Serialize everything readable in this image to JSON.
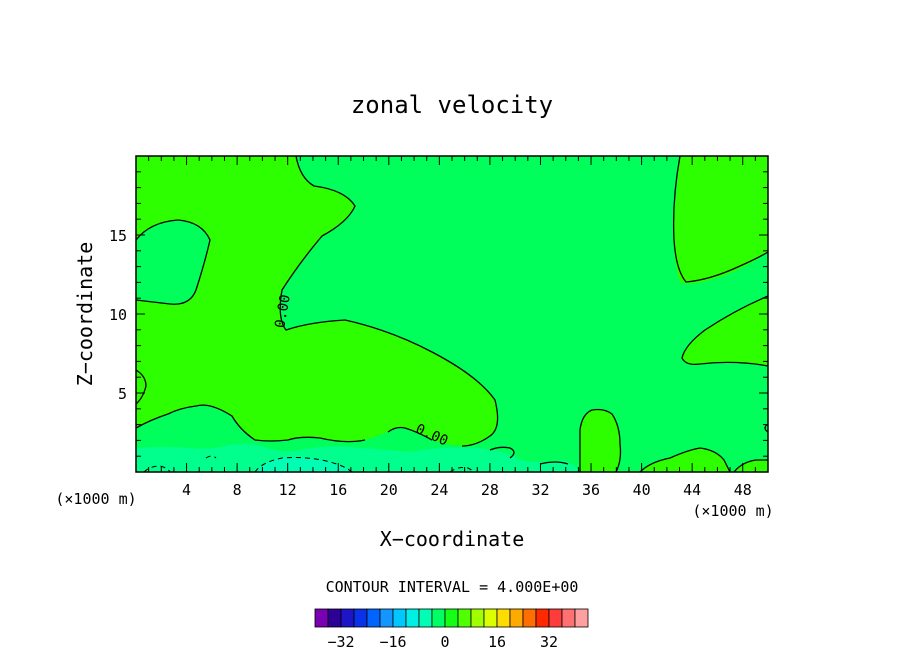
{
  "chart_data": {
    "type": "contour",
    "title": "zonal velocity",
    "xlabel": "X−coordinate",
    "ylabel": "Z−coordinate",
    "x_unit": "(×1000 m)",
    "x_range": [
      0,
      50
    ],
    "y_range": [
      0,
      20
    ],
    "x_ticks": [
      4,
      8,
      12,
      16,
      20,
      24,
      28,
      32,
      36,
      40,
      44,
      48
    ],
    "y_ticks": [
      5,
      10,
      15
    ],
    "contour_interval_text": "CONTOUR INTERVAL =  4.000E+00",
    "contour_label": "0.00",
    "colorbar": {
      "colors": [
        "#7a00b4",
        "#2d0096",
        "#1e14c8",
        "#0a32e6",
        "#0064ff",
        "#1496ff",
        "#00c8ff",
        "#00f0e6",
        "#00ffb4",
        "#00ff64",
        "#14ff14",
        "#50ff00",
        "#a0ff00",
        "#dcff00",
        "#ffdc00",
        "#ffaa00",
        "#ff6e00",
        "#ff2800",
        "#ff3c3c",
        "#ff7070",
        "#ffa0a0"
      ],
      "tick_labels": [
        "−32",
        "−16",
        "0",
        "16",
        "32"
      ],
      "tick_values": [
        -32,
        -16,
        0,
        16,
        32
      ],
      "vmin": -40,
      "vmax": 44
    },
    "region_colors": {
      "background": "#00ff5a",
      "positive": "#2dff00",
      "bottom_band": "#00ff8c",
      "bottom_patch": "#00ffb4"
    }
  }
}
